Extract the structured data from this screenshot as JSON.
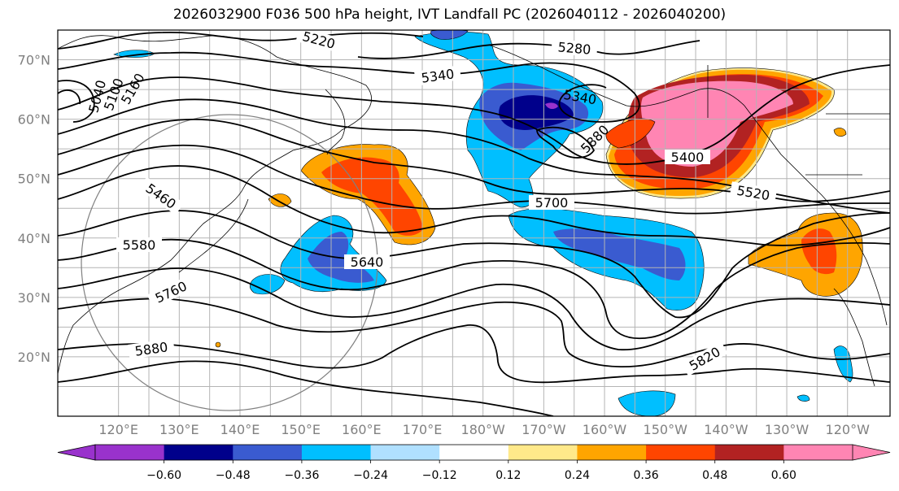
{
  "title": "2026032900 F036 500 hPa height, IVT Landfall PC (2026040112 - 2026040200)",
  "lat_labels": [
    {
      "text": "70°N",
      "lat": 70
    },
    {
      "text": "60°N",
      "lat": 60
    },
    {
      "text": "50°N",
      "lat": 50
    },
    {
      "text": "40°N",
      "lat": 40
    },
    {
      "text": "30°N",
      "lat": 30
    },
    {
      "text": "20°N",
      "lat": 20
    }
  ],
  "lon_labels": [
    {
      "text": "120°E",
      "lon": 120
    },
    {
      "text": "130°E",
      "lon": 130
    },
    {
      "text": "140°E",
      "lon": 140
    },
    {
      "text": "150°E",
      "lon": 150
    },
    {
      "text": "160°E",
      "lon": 160
    },
    {
      "text": "170°E",
      "lon": 170
    },
    {
      "text": "180°W",
      "lon": 180
    },
    {
      "text": "170°W",
      "lon": 190
    },
    {
      "text": "160°W",
      "lon": 200
    },
    {
      "text": "150°W",
      "lon": 210
    },
    {
      "text": "140°W",
      "lon": 220
    },
    {
      "text": "130°W",
      "lon": 230
    },
    {
      "text": "120°W",
      "lon": 240
    }
  ],
  "colorbar": {
    "colors": [
      "#9932CC",
      "#00008B",
      "#3A5BD0",
      "#00BFFF",
      "#B0E0FF",
      "#FFFFFF",
      "#FFE98A",
      "#FFA500",
      "#FF4500",
      "#B22222",
      "#FF85B3"
    ],
    "labels": [
      "−0.60",
      "−0.48",
      "−0.36",
      "−0.24",
      "−0.12",
      "0.12",
      "0.24",
      "0.36",
      "0.48",
      "0.60"
    ],
    "under_color": "#9932CC",
    "over_color": "#FF85B3"
  },
  "contour_labels": [
    "5220",
    "5280",
    "5340",
    "5040",
    "5100",
    "5160",
    "5460",
    "5580",
    "5700",
    "5640",
    "5880",
    "5760",
    "5400",
    "5520",
    "5820",
    "5340",
    "5880"
  ],
  "colors": {
    "pink": "#FF85B3",
    "firebrick": "#B22222",
    "orangered": "#FF4500",
    "orange": "#FFA500",
    "yellow": "#FFE98A",
    "lightblue": "#B0E0FF",
    "deepskyblue": "#00BFFF",
    "royal": "#3A5BD0",
    "navy": "#00008B",
    "purple": "#9932CC",
    "grid": "#B4B4B4"
  }
}
